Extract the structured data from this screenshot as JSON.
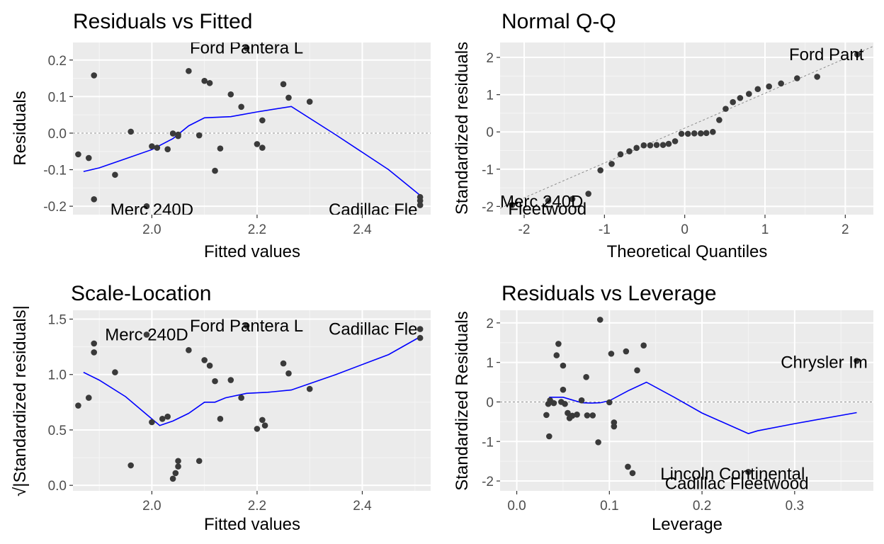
{
  "chart_data": [
    {
      "type": "scatter",
      "title": "Residuals vs Fitted",
      "xlabel": "Fitted values",
      "ylabel": "Residuals",
      "xlim": [
        1.85,
        2.53
      ],
      "ylim": [
        -0.223,
        0.248
      ],
      "xticks": [
        {
          "v": 2.0,
          "label": "2.0"
        },
        {
          "v": 2.2,
          "label": "2.2"
        },
        {
          "v": 2.4,
          "label": "2.4"
        }
      ],
      "yticks": [
        {
          "v": -0.2,
          "label": "-0.2"
        },
        {
          "v": -0.1,
          "label": "-0.1"
        },
        {
          "v": 0.0,
          "label": "0.0"
        },
        {
          "v": 0.1,
          "label": "0.1"
        },
        {
          "v": 0.2,
          "label": "0.2"
        }
      ],
      "refline": 0,
      "points": [
        [
          1.86,
          -0.058
        ],
        [
          1.88,
          -0.068
        ],
        [
          1.89,
          0.158
        ],
        [
          1.89,
          -0.181
        ],
        [
          1.93,
          -0.114
        ],
        [
          1.96,
          0.004
        ],
        [
          1.99,
          -0.2
        ],
        [
          2.0,
          -0.036
        ],
        [
          2.01,
          -0.04
        ],
        [
          2.03,
          -0.044
        ],
        [
          2.04,
          -0.001
        ],
        [
          2.05,
          -0.004
        ],
        [
          2.05,
          -0.008
        ],
        [
          2.07,
          0.17
        ],
        [
          2.09,
          -0.006
        ],
        [
          2.1,
          0.143
        ],
        [
          2.11,
          0.137
        ],
        [
          2.12,
          -0.103
        ],
        [
          2.13,
          -0.042
        ],
        [
          2.15,
          0.106
        ],
        [
          2.17,
          0.072
        ],
        [
          2.18,
          0.233
        ],
        [
          2.2,
          -0.03
        ],
        [
          2.21,
          -0.04
        ],
        [
          2.21,
          0.035
        ],
        [
          2.25,
          0.134
        ],
        [
          2.26,
          0.097
        ],
        [
          2.3,
          0.086
        ],
        [
          2.51,
          -0.175
        ],
        [
          2.51,
          -0.185
        ],
        [
          2.51,
          -0.197
        ]
      ],
      "smooth": [
        [
          1.87,
          -0.105
        ],
        [
          1.9,
          -0.095
        ],
        [
          1.95,
          -0.07
        ],
        [
          2.0,
          -0.045
        ],
        [
          2.04,
          -0.015
        ],
        [
          2.07,
          0.02
        ],
        [
          2.1,
          0.042
        ],
        [
          2.15,
          0.045
        ],
        [
          2.2,
          0.058
        ],
        [
          2.265,
          0.073
        ],
        [
          2.35,
          -0.005
        ],
        [
          2.45,
          -0.1
        ],
        [
          2.51,
          -0.17
        ]
      ],
      "labels": [
        {
          "text": "Ford Pantera L",
          "x": 2.18,
          "y": 0.233,
          "anchor": "middle"
        },
        {
          "text": "Merc 240D",
          "x": 2.0,
          "y": -0.209,
          "anchor": "middle"
        },
        {
          "text": "Cadillac Fle",
          "x": 2.505,
          "y": -0.209,
          "anchor": "end"
        }
      ]
    },
    {
      "type": "scatter",
      "title": "Normal Q-Q",
      "xlabel": "Theoretical Quantiles",
      "ylabel": "Standardized residuals",
      "xlim": [
        -2.3,
        2.35
      ],
      "ylim": [
        -2.22,
        2.4
      ],
      "xticks": [
        {
          "v": -2,
          "label": "-2"
        },
        {
          "v": -1,
          "label": "-1"
        },
        {
          "v": 0,
          "label": "0"
        },
        {
          "v": 1,
          "label": "1"
        },
        {
          "v": 2,
          "label": "2"
        }
      ],
      "yticks": [
        {
          "v": -2,
          "label": "-2"
        },
        {
          "v": -1,
          "label": "-1"
        },
        {
          "v": 0,
          "label": "0"
        },
        {
          "v": 1,
          "label": "1"
        },
        {
          "v": 2,
          "label": "2"
        }
      ],
      "refline_xy": [
        [
          -2.3,
          -2.05
        ],
        [
          2.35,
          2.3
        ]
      ],
      "points": [
        [
          -2.15,
          -1.96
        ],
        [
          -1.7,
          -1.85
        ],
        [
          -1.4,
          -1.8
        ],
        [
          -1.2,
          -1.66
        ],
        [
          -1.05,
          -1.03
        ],
        [
          -0.91,
          -0.86
        ],
        [
          -0.8,
          -0.6
        ],
        [
          -0.69,
          -0.52
        ],
        [
          -0.6,
          -0.43
        ],
        [
          -0.51,
          -0.36
        ],
        [
          -0.43,
          -0.36
        ],
        [
          -0.35,
          -0.35
        ],
        [
          -0.27,
          -0.35
        ],
        [
          -0.2,
          -0.32
        ],
        [
          -0.12,
          -0.25
        ],
        [
          -0.04,
          -0.05
        ],
        [
          0.04,
          -0.05
        ],
        [
          0.12,
          -0.04
        ],
        [
          0.2,
          -0.04
        ],
        [
          0.27,
          -0.03
        ],
        [
          0.35,
          0.0
        ],
        [
          0.43,
          0.32
        ],
        [
          0.51,
          0.62
        ],
        [
          0.6,
          0.8
        ],
        [
          0.69,
          0.91
        ],
        [
          0.8,
          1.02
        ],
        [
          0.91,
          1.15
        ],
        [
          1.05,
          1.22
        ],
        [
          1.2,
          1.3
        ],
        [
          1.4,
          1.44
        ],
        [
          1.65,
          1.48
        ],
        [
          2.15,
          2.08
        ]
      ],
      "labels": [
        {
          "text": "Ford Pant",
          "x": 1.3,
          "y": 2.08,
          "anchor": "start"
        },
        {
          "text": "Merc 240D",
          "x": -2.3,
          "y": -1.87,
          "anchor": "start"
        },
        {
          "text": "Fleetwood",
          "x": -2.2,
          "y": -2.07,
          "anchor": "start"
        }
      ]
    },
    {
      "type": "scatter",
      "title": "Scale-Location",
      "xlabel": "Fitted values",
      "ylabel": "√|Standardized residuals|",
      "xlim": [
        1.85,
        2.53
      ],
      "ylim": [
        -0.05,
        1.58
      ],
      "xticks": [
        {
          "v": 2.0,
          "label": "2.0"
        },
        {
          "v": 2.2,
          "label": "2.2"
        },
        {
          "v": 2.4,
          "label": "2.4"
        }
      ],
      "yticks": [
        {
          "v": 0.0,
          "label": "0.0"
        },
        {
          "v": 0.5,
          "label": "0.5"
        },
        {
          "v": 1.0,
          "label": "1.0"
        },
        {
          "v": 1.5,
          "label": "1.5"
        }
      ],
      "points": [
        [
          1.86,
          0.72
        ],
        [
          1.88,
          0.79
        ],
        [
          1.89,
          1.28
        ],
        [
          1.89,
          1.2
        ],
        [
          1.93,
          1.02
        ],
        [
          1.96,
          0.18
        ],
        [
          1.99,
          1.36
        ],
        [
          2.0,
          0.57
        ],
        [
          2.02,
          0.6
        ],
        [
          2.03,
          0.62
        ],
        [
          2.04,
          0.06
        ],
        [
          2.045,
          0.11
        ],
        [
          2.05,
          0.17
        ],
        [
          2.05,
          0.22
        ],
        [
          2.07,
          1.22
        ],
        [
          2.09,
          0.22
        ],
        [
          2.1,
          1.13
        ],
        [
          2.11,
          1.08
        ],
        [
          2.12,
          0.94
        ],
        [
          2.13,
          0.6
        ],
        [
          2.15,
          0.95
        ],
        [
          2.17,
          0.79
        ],
        [
          2.18,
          1.44
        ],
        [
          2.2,
          0.51
        ],
        [
          2.21,
          0.59
        ],
        [
          2.215,
          0.54
        ],
        [
          2.25,
          1.1
        ],
        [
          2.26,
          1.01
        ],
        [
          2.3,
          0.87
        ],
        [
          2.51,
          1.41
        ],
        [
          2.51,
          1.33
        ]
      ],
      "smooth": [
        [
          1.87,
          1.02
        ],
        [
          1.9,
          0.95
        ],
        [
          1.95,
          0.8
        ],
        [
          1.99,
          0.64
        ],
        [
          2.015,
          0.54
        ],
        [
          2.04,
          0.58
        ],
        [
          2.07,
          0.65
        ],
        [
          2.1,
          0.75
        ],
        [
          2.12,
          0.75
        ],
        [
          2.14,
          0.79
        ],
        [
          2.18,
          0.83
        ],
        [
          2.22,
          0.84
        ],
        [
          2.265,
          0.86
        ],
        [
          2.35,
          1.0
        ],
        [
          2.45,
          1.18
        ],
        [
          2.51,
          1.34
        ]
      ],
      "labels": [
        {
          "text": "Ford Pantera L",
          "x": 2.18,
          "y": 1.44,
          "anchor": "middle"
        },
        {
          "text": "Merc 240D",
          "x": 1.99,
          "y": 1.36,
          "anchor": "middle"
        },
        {
          "text": "Cadillac Fle",
          "x": 2.505,
          "y": 1.41,
          "anchor": "end"
        }
      ]
    },
    {
      "type": "scatter",
      "title": "Residuals vs Leverage",
      "xlabel": "Leverage",
      "ylabel": "Standardized Residuals",
      "xlim": [
        -0.018,
        0.385
      ],
      "ylim": [
        -2.25,
        2.32
      ],
      "xticks": [
        {
          "v": 0.0,
          "label": "0.0"
        },
        {
          "v": 0.1,
          "label": "0.1"
        },
        {
          "v": 0.2,
          "label": "0.2"
        },
        {
          "v": 0.3,
          "label": "0.3"
        }
      ],
      "yticks": [
        {
          "v": -2,
          "label": "-2"
        },
        {
          "v": -1,
          "label": "-1"
        },
        {
          "v": 0,
          "label": "0"
        },
        {
          "v": 1,
          "label": "1"
        },
        {
          "v": 2,
          "label": "2"
        }
      ],
      "refline": 0,
      "points": [
        [
          0.032,
          -0.33
        ],
        [
          0.034,
          -0.05
        ],
        [
          0.035,
          -0.87
        ],
        [
          0.036,
          0.04
        ],
        [
          0.04,
          -0.03
        ],
        [
          0.043,
          1.18
        ],
        [
          0.045,
          1.47
        ],
        [
          0.048,
          0.0
        ],
        [
          0.05,
          0.92
        ],
        [
          0.05,
          0.31
        ],
        [
          0.052,
          -0.05
        ],
        [
          0.055,
          -0.28
        ],
        [
          0.057,
          -0.41
        ],
        [
          0.06,
          -0.35
        ],
        [
          0.065,
          -0.32
        ],
        [
          0.07,
          0.04
        ],
        [
          0.075,
          0.63
        ],
        [
          0.076,
          -0.34
        ],
        [
          0.082,
          -0.34
        ],
        [
          0.088,
          -1.02
        ],
        [
          0.09,
          2.08
        ],
        [
          0.1,
          -0.01
        ],
        [
          0.102,
          1.22
        ],
        [
          0.105,
          -0.52
        ],
        [
          0.105,
          -0.62
        ],
        [
          0.118,
          1.28
        ],
        [
          0.12,
          -1.64
        ],
        [
          0.125,
          -1.8
        ],
        [
          0.13,
          0.8
        ],
        [
          0.137,
          1.43
        ],
        [
          0.25,
          -1.77
        ],
        [
          0.367,
          1.04
        ]
      ],
      "smooth": [
        [
          0.035,
          0.12
        ],
        [
          0.05,
          0.12
        ],
        [
          0.06,
          0.05
        ],
        [
          0.07,
          -0.02
        ],
        [
          0.08,
          -0.03
        ],
        [
          0.09,
          -0.02
        ],
        [
          0.1,
          0.03
        ],
        [
          0.12,
          0.28
        ],
        [
          0.14,
          0.5
        ],
        [
          0.17,
          0.12
        ],
        [
          0.2,
          -0.28
        ],
        [
          0.25,
          -0.8
        ],
        [
          0.26,
          -0.73
        ],
        [
          0.3,
          -0.55
        ],
        [
          0.367,
          -0.27
        ]
      ],
      "labels": [
        {
          "text": "Chrysler Im",
          "x": 0.285,
          "y": 1.0,
          "anchor": "start"
        },
        {
          "text": "Lincoln Continental",
          "x": 0.155,
          "y": -1.82,
          "anchor": "start"
        },
        {
          "text": "Cadillac Fleetwood",
          "x": 0.16,
          "y": -2.06,
          "anchor": "start"
        }
      ]
    }
  ]
}
